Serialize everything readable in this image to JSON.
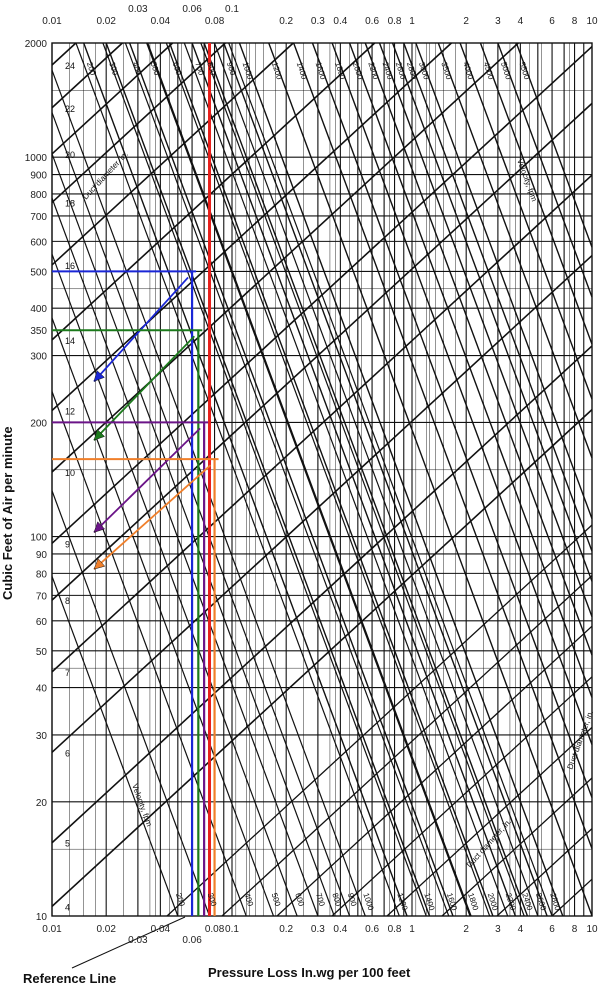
{
  "colors": {
    "background": "#ffffff",
    "grid": "#111111",
    "red": "#e8201c",
    "blue": "#1a26d6",
    "green": "#1c7a1c",
    "purple": "#6b1488",
    "orange": "#f07f2a"
  },
  "chart_data": {
    "type": "nomogram",
    "xlabel": "Pressure Loss In.wg per 100 feet",
    "ylabel": "Cubic Feet of Air per minute",
    "xscale": "log",
    "yscale": "log",
    "xlim": [
      0.01,
      10
    ],
    "ylim": [
      10,
      2000
    ],
    "grid": true,
    "x_ticks_bottom": [
      "0.01",
      "0.02",
      "0.03",
      "0.04",
      "0.06",
      "0.08",
      "0.1",
      "0.2",
      "0.3",
      "0.4",
      "0.6",
      "0.8",
      "1",
      "2",
      "3",
      "4",
      "6",
      "8",
      "10"
    ],
    "x_ticks_top": [
      "0.01",
      "0.02",
      "0.03",
      "0.04",
      "0.06",
      "0.08",
      "0.1",
      "0.2",
      "0.3",
      "0.4",
      "0.6",
      "0.8",
      "1",
      "2",
      "3",
      "4",
      "6",
      "8",
      "10"
    ],
    "y_ticks": [
      "10",
      "20",
      "30",
      "40",
      "50",
      "60",
      "70",
      "80",
      "90",
      "100",
      "200",
      "300",
      "350",
      "400",
      "500",
      "600",
      "700",
      "800",
      "900",
      "1000",
      "2000"
    ],
    "duct_diameter_label": "Duct diameter, in.",
    "duct_diameters": [
      "4",
      "5",
      "6",
      "7",
      "8",
      "9",
      "10",
      "12",
      "14",
      "16",
      "18",
      "20",
      "22",
      "24"
    ],
    "velocity_label": "Velocity, fpm",
    "velocities": [
      "200",
      "300",
      "400",
      "500",
      "600",
      "700",
      "800",
      "900",
      "1000",
      "1200",
      "1400",
      "1600",
      "1800",
      "2000",
      "2200",
      "2400",
      "2600",
      "2800",
      "3000",
      "3500",
      "4000",
      "4500",
      "5000",
      "5500"
    ],
    "series": [
      {
        "name": "Reference Line",
        "x": 0.075,
        "color": "red"
      },
      {
        "cfm": 500,
        "pressure_loss": 0.06,
        "color": "blue"
      },
      {
        "cfm": 350,
        "pressure_loss": 0.065,
        "color": "green"
      },
      {
        "cfm": 200,
        "pressure_loss": 0.07,
        "color": "purple"
      },
      {
        "cfm": 160,
        "pressure_loss": 0.08,
        "color": "orange"
      }
    ],
    "annotation": "Reference Line"
  }
}
